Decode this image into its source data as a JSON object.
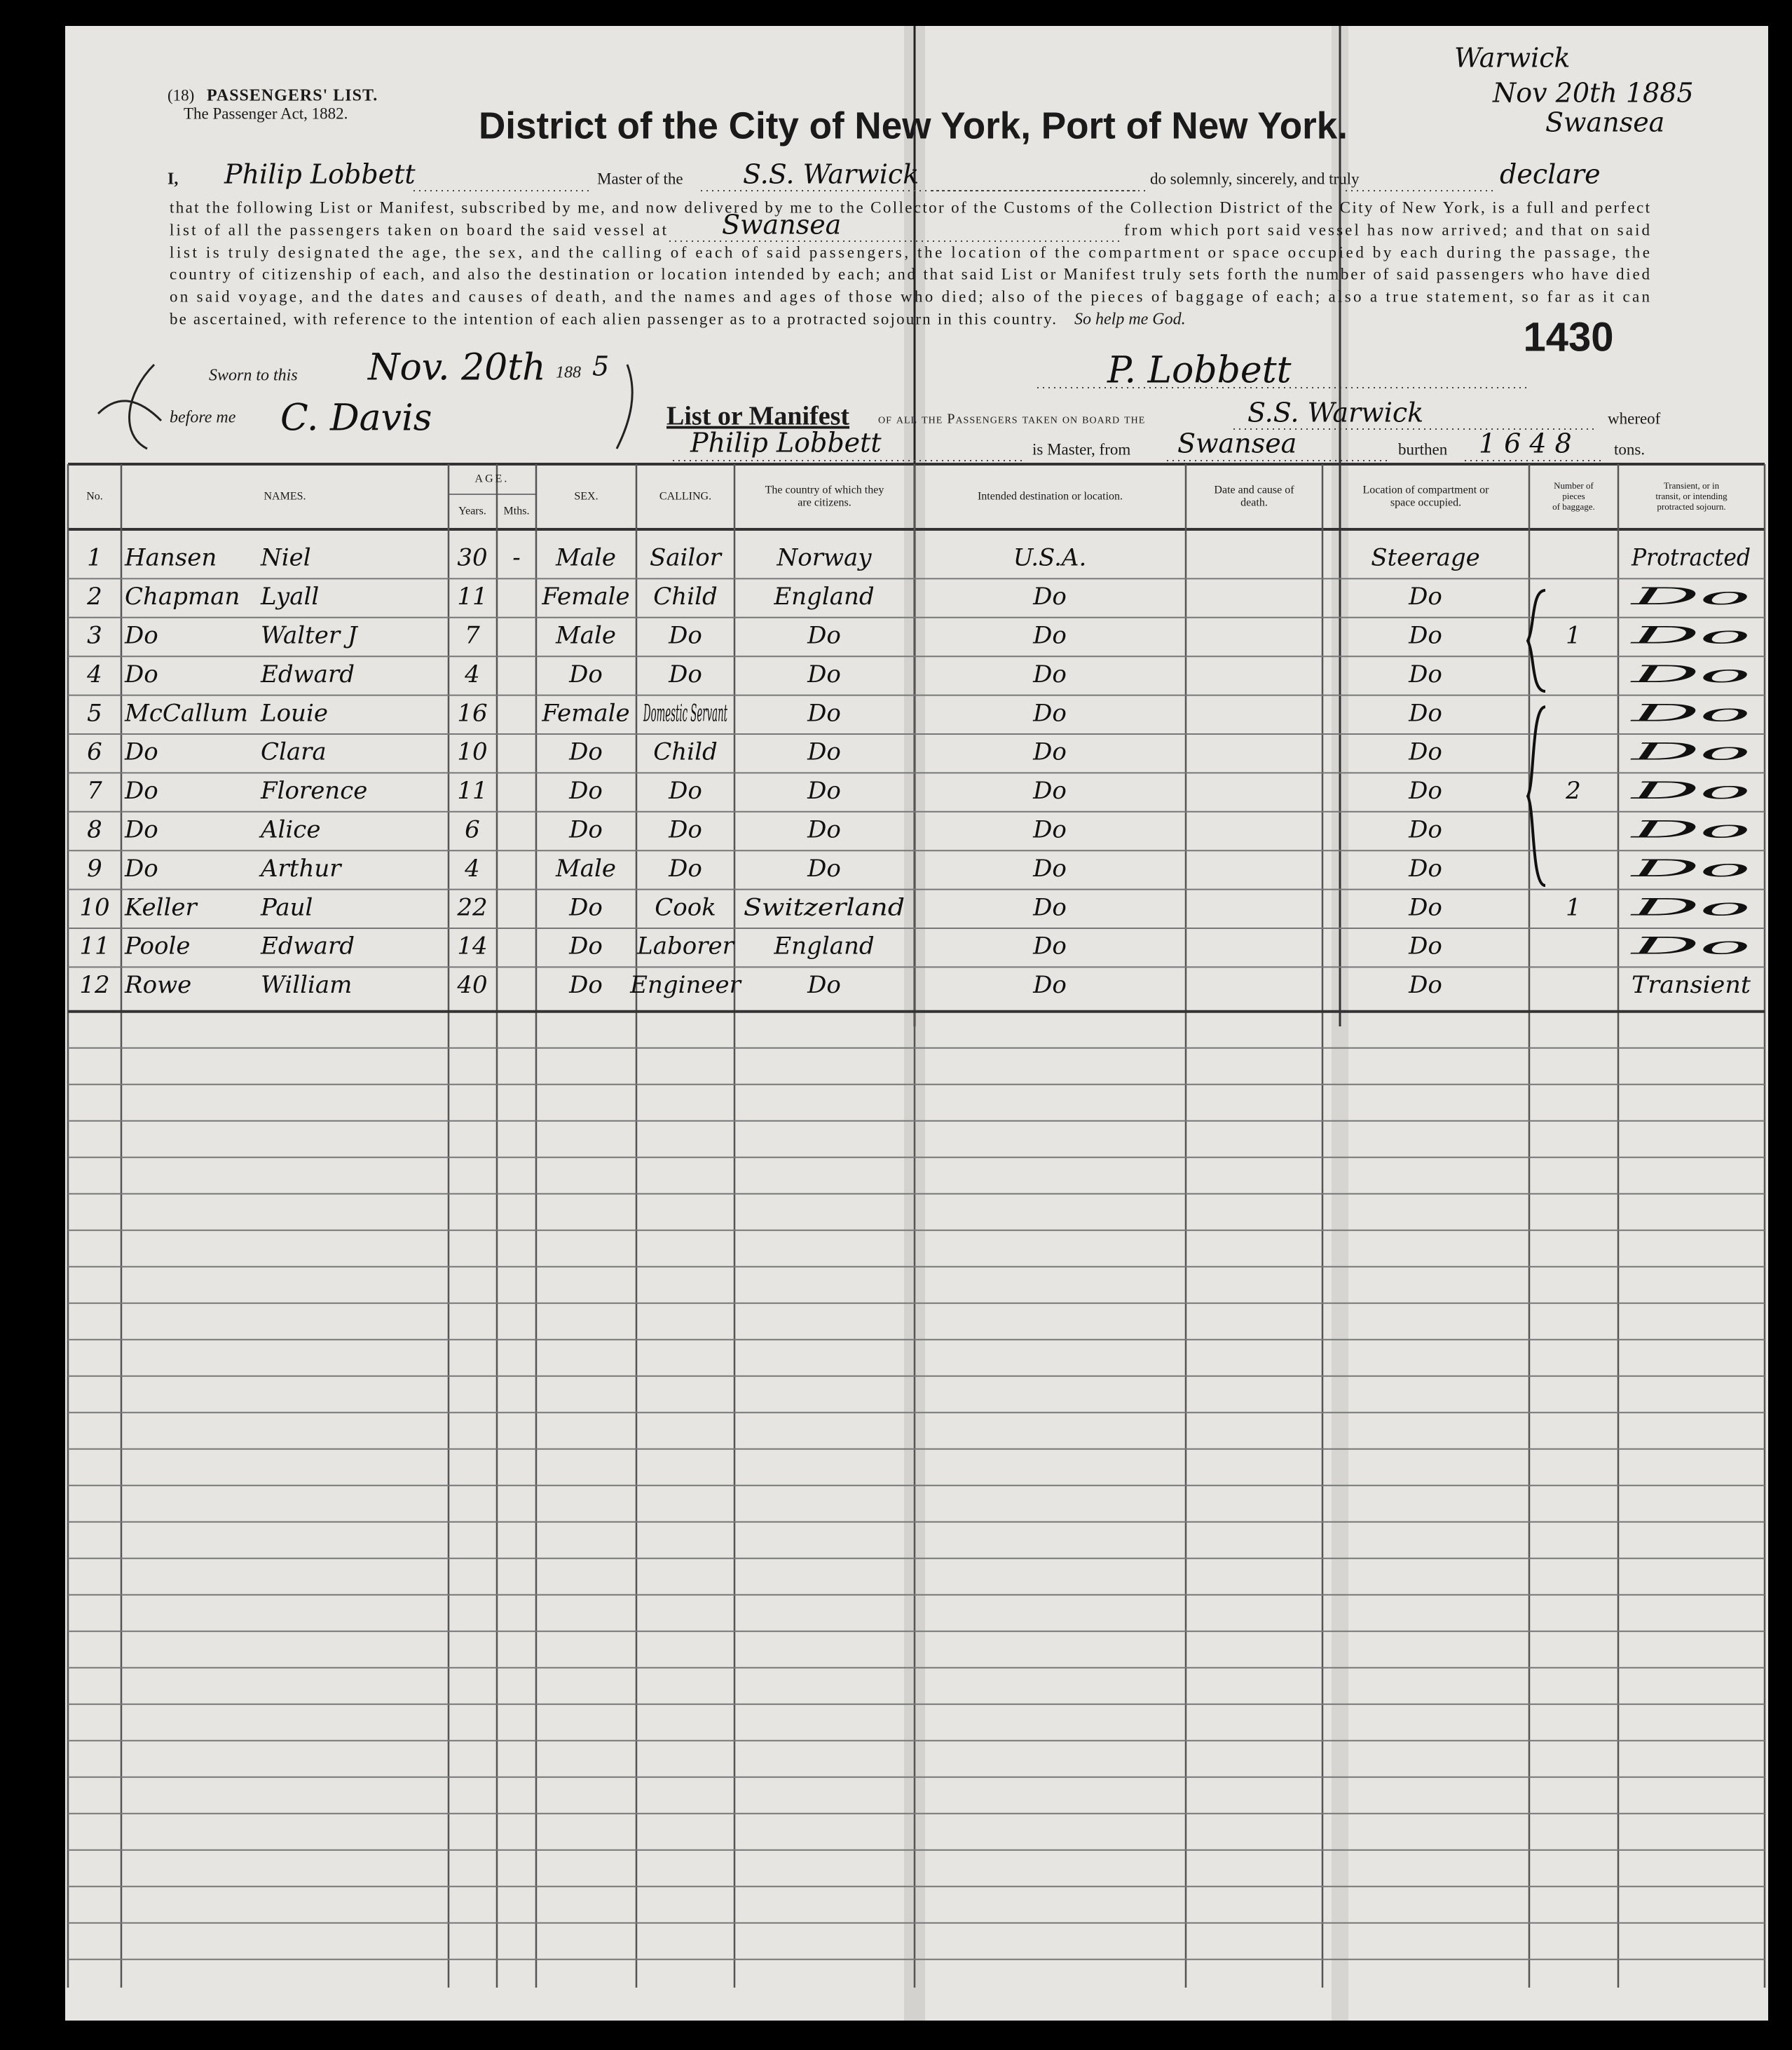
{
  "header": {
    "form_number": "(18)",
    "form_title": "PASSENGERS' LIST.",
    "act": "The Passenger Act, 1882.",
    "title": "District of the City of New York, Port of New York.",
    "annotation": [
      "Warwick",
      "Nov 20th 1885",
      "Swansea"
    ],
    "document_number": "1430"
  },
  "oath": {
    "pronoun": "I,",
    "master_name": "Philip Lobbett",
    "master_of": "Master of the",
    "vessel": "S.S. Warwick",
    "solemnly": "do solemnly, sincerely, and truly",
    "declare": "declare",
    "line2": "that the following List or Manifest, subscribed by me, and now delivered by me to the Collector of the Customs of the Collection District of the City of New York, is a full and perfect",
    "line3_start": "list of all the passengers taken on board the said vessel at",
    "port": "Swansea",
    "line3_end": "from which port said vessel has now arrived; and that on said",
    "line4": "list is truly designated the age, the sex, and the calling of each of said passengers, the location of the compartment or space occupied by each during the passage, the",
    "line5": "country of citizenship of each, and also the destination or location intended by each; and that said List or Manifest truly sets forth the number of said passengers who have died",
    "line6": "on said voyage, and the dates and causes of death, and the names and ages of those who died; also of the pieces of baggage of each; also a true statement, so far as it can",
    "line7": "be ascertained, with reference to the intention of each alien passenger as to a protracted sojourn in this country.",
    "closing": "So help me God."
  },
  "sworn": {
    "sworn_to": "Sworn to this",
    "date": "Nov. 20th",
    "year_prefix": "188",
    "year_digit": "5",
    "before_me": "before me",
    "official": "C. Davis",
    "signature": "P. Lobbett"
  },
  "manifest": {
    "heading": "List or Manifest",
    "text": "of all the Passengers taken on board the",
    "vessel": "S.S. Warwick",
    "whereof": "whereof",
    "master": "Philip Lobbett",
    "is_master": "is Master, from",
    "port": "Swansea",
    "burthen": "burthen",
    "tonnage": "1648",
    "tons": "tons."
  },
  "table": {
    "columns": [
      [
        "No."
      ],
      [
        "NAMES."
      ],
      [
        "Years."
      ],
      [
        "Mths."
      ],
      [
        "SEX."
      ],
      [
        "CALLING."
      ],
      [
        "The country of which they",
        "are citizens."
      ],
      [
        "Intended destination or location."
      ],
      [
        "Date and cause of",
        "death."
      ],
      [
        "Location of compartment or",
        "space occupied."
      ],
      [
        "Number of",
        "pieces",
        "of baggage."
      ],
      [
        "Transient, or in",
        "transit, or intending",
        "protracted sojourn."
      ]
    ],
    "age_group": "AGE.",
    "rows": [
      [
        1,
        "Hansen",
        "Niel",
        30,
        "-",
        "Male",
        "Sailor",
        "Norway",
        "U.S.A.",
        null,
        "Steerage",
        null,
        "Protracted"
      ],
      [
        2,
        "Chapman",
        "Lyall",
        11,
        null,
        "Female",
        "Child",
        "England",
        "Do",
        null,
        "Do",
        null,
        "Do"
      ],
      [
        3,
        "Do",
        "Walter J",
        7,
        null,
        "Male",
        "Do",
        "Do",
        "Do",
        null,
        "Do",
        1,
        "Do"
      ],
      [
        4,
        "Do",
        "Edward",
        4,
        null,
        "Do",
        "Do",
        "Do",
        "Do",
        null,
        "Do",
        null,
        "Do"
      ],
      [
        5,
        "McCallum",
        "Louie",
        16,
        null,
        "Female",
        "Domestic Servant",
        "Do",
        "Do",
        null,
        "Do",
        null,
        "Do"
      ],
      [
        6,
        "Do",
        "Clara",
        10,
        null,
        "Do",
        "Child",
        "Do",
        "Do",
        null,
        "Do",
        null,
        "Do"
      ],
      [
        7,
        "Do",
        "Florence",
        11,
        null,
        "Do",
        "Do",
        "Do",
        "Do",
        null,
        "Do",
        2,
        "Do"
      ],
      [
        8,
        "Do",
        "Alice",
        6,
        null,
        "Do",
        "Do",
        "Do",
        "Do",
        null,
        "Do",
        null,
        "Do"
      ],
      [
        9,
        "Do",
        "Arthur",
        4,
        null,
        "Male",
        "Do",
        "Do",
        "Do",
        null,
        "Do",
        null,
        "Do"
      ],
      [
        10,
        "Keller",
        "Paul",
        22,
        null,
        "Do",
        "Cook",
        "Switzerland",
        "Do",
        null,
        "Do",
        1,
        "Do"
      ],
      [
        11,
        "Poole",
        "Edward",
        14,
        null,
        "Do",
        "Laborer",
        "England",
        "Do",
        null,
        "Do",
        null,
        "Do"
      ],
      [
        12,
        "Rowe",
        "William",
        40,
        null,
        "Do",
        "Engineer",
        "Do",
        "Do",
        null,
        "Do",
        null,
        "Transient"
      ]
    ]
  }
}
